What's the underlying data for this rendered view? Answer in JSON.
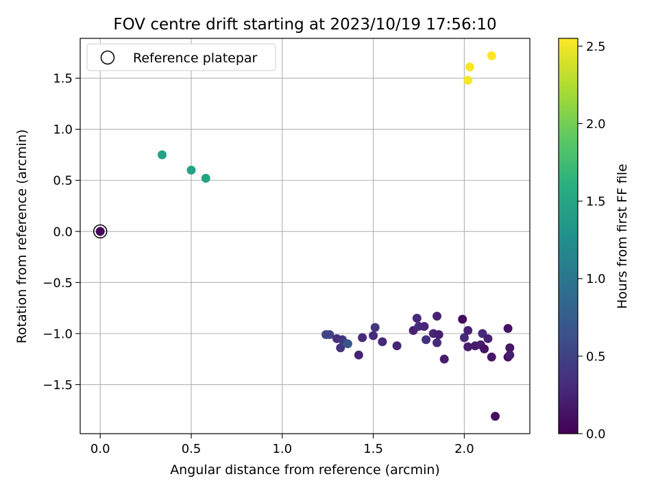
{
  "chart_data": {
    "type": "scatter",
    "title": "FOV centre drift starting at 2023/10/19 17:56:10",
    "xlabel": "Angular distance from reference (arcmin)",
    "ylabel": "Rotation from reference (arcmin)",
    "xlim": [
      -0.11,
      2.36
    ],
    "ylim": [
      -1.98,
      1.89
    ],
    "xticks": [
      0.0,
      0.5,
      1.0,
      1.5,
      2.0
    ],
    "yticks": [
      -1.5,
      -1.0,
      -0.5,
      0.0,
      0.5,
      1.0,
      1.5
    ],
    "xtick_labels": [
      "0.0",
      "0.5",
      "1.0",
      "1.5",
      "2.0"
    ],
    "ytick_labels": [
      "−1.5",
      "−1.0",
      "−0.5",
      "0.0",
      "0.5",
      "1.0",
      "1.5"
    ],
    "grid": true,
    "legend": {
      "location": "upper-left",
      "entries": [
        {
          "label": "Reference platepar",
          "marker": "open-circle",
          "color": "#000000"
        }
      ]
    },
    "colorbar": {
      "label": "Hours from first FF file",
      "colormap": "viridis",
      "range": [
        0.0,
        2.55
      ],
      "ticks": [
        0.0,
        0.5,
        1.0,
        1.5,
        2.0,
        2.5
      ],
      "tick_labels": [
        "0.0",
        "0.5",
        "1.0",
        "1.5",
        "2.0",
        "2.5"
      ]
    },
    "reference_point": {
      "x": 0.0,
      "y": 0.0
    },
    "points": [
      {
        "x": 0.0,
        "y": 0.0,
        "hours": 0.02
      },
      {
        "x": 1.24,
        "y": -1.01,
        "hours": 0.55
      },
      {
        "x": 1.26,
        "y": -1.01,
        "hours": 0.52
      },
      {
        "x": 1.3,
        "y": -1.05,
        "hours": 0.35
      },
      {
        "x": 1.32,
        "y": -1.14,
        "hours": 0.38
      },
      {
        "x": 1.33,
        "y": -1.06,
        "hours": 0.42
      },
      {
        "x": 1.36,
        "y": -1.1,
        "hours": 0.68
      },
      {
        "x": 1.42,
        "y": -1.21,
        "hours": 0.25
      },
      {
        "x": 1.44,
        "y": -1.04,
        "hours": 0.3
      },
      {
        "x": 1.5,
        "y": -1.02,
        "hours": 0.32
      },
      {
        "x": 1.51,
        "y": -0.94,
        "hours": 0.4
      },
      {
        "x": 1.55,
        "y": -1.08,
        "hours": 0.28
      },
      {
        "x": 1.63,
        "y": -1.12,
        "hours": 0.27
      },
      {
        "x": 1.72,
        "y": -0.97,
        "hours": 0.25
      },
      {
        "x": 1.74,
        "y": -0.85,
        "hours": 0.3
      },
      {
        "x": 1.75,
        "y": -0.93,
        "hours": 0.32
      },
      {
        "x": 1.78,
        "y": -0.93,
        "hours": 0.28
      },
      {
        "x": 1.79,
        "y": -1.06,
        "hours": 0.35
      },
      {
        "x": 1.83,
        "y": -1.0,
        "hours": 0.27
      },
      {
        "x": 1.85,
        "y": -0.83,
        "hours": 0.25
      },
      {
        "x": 1.85,
        "y": -1.09,
        "hours": 0.3
      },
      {
        "x": 1.86,
        "y": -1.01,
        "hours": 0.22
      },
      {
        "x": 1.89,
        "y": -1.25,
        "hours": 0.2
      },
      {
        "x": 1.99,
        "y": -0.86,
        "hours": 0.08
      },
      {
        "x": 2.0,
        "y": -1.04,
        "hours": 0.3
      },
      {
        "x": 2.02,
        "y": -0.97,
        "hours": 0.25
      },
      {
        "x": 2.02,
        "y": -1.13,
        "hours": 0.2
      },
      {
        "x": 2.06,
        "y": -1.12,
        "hours": 0.18
      },
      {
        "x": 2.09,
        "y": -1.11,
        "hours": 0.22
      },
      {
        "x": 2.1,
        "y": -1.0,
        "hours": 0.3
      },
      {
        "x": 2.11,
        "y": -1.15,
        "hours": 0.12
      },
      {
        "x": 2.13,
        "y": -1.05,
        "hours": 0.25
      },
      {
        "x": 2.15,
        "y": -1.23,
        "hours": 0.15
      },
      {
        "x": 2.17,
        "y": -1.81,
        "hours": 0.1
      },
      {
        "x": 2.24,
        "y": -0.95,
        "hours": 0.12
      },
      {
        "x": 2.24,
        "y": -1.23,
        "hours": 0.1
      },
      {
        "x": 2.25,
        "y": -1.14,
        "hours": 0.15
      },
      {
        "x": 2.25,
        "y": -1.21,
        "hours": 0.2
      },
      {
        "x": 0.34,
        "y": 0.75,
        "hours": 1.45
      },
      {
        "x": 0.5,
        "y": 0.6,
        "hours": 1.47
      },
      {
        "x": 0.58,
        "y": 0.52,
        "hours": 1.48
      },
      {
        "x": 2.02,
        "y": 1.48,
        "hours": 2.52
      },
      {
        "x": 2.03,
        "y": 1.61,
        "hours": 2.53
      },
      {
        "x": 2.15,
        "y": 1.72,
        "hours": 2.55
      }
    ]
  }
}
